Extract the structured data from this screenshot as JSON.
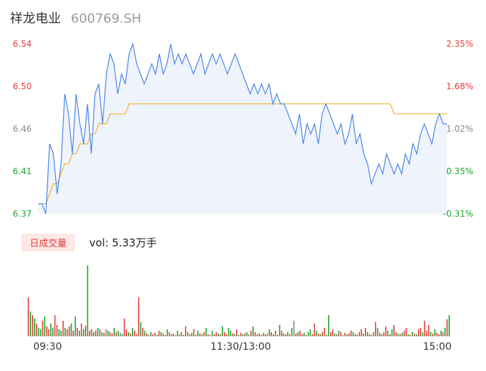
{
  "header": {
    "name": "祥龙电业",
    "code": "600769.SH"
  },
  "volume_panel": {
    "badge": "日成交量",
    "vol_label": "vol: 5.33万手"
  },
  "colors": {
    "up": "#e23b3b",
    "down": "#1aa62a",
    "neutral": "#888888",
    "price_line": "#4a86e8",
    "avg_line": "#f0b429",
    "area_fill": "#eef3fc"
  },
  "chart_data": [
    {
      "type": "line",
      "title": "",
      "ylim": [
        6.37,
        6.54
      ],
      "y_ticks": [
        "6.54",
        "6.50",
        "6.46",
        "6.41",
        "6.37"
      ],
      "y_right_ticks": [
        "2.35%",
        "1.68%",
        "1.02%",
        "0.35%",
        "-0.31%"
      ],
      "x_ticks": [
        "09:30",
        "11:30/13:00",
        "15:00"
      ],
      "series": [
        {
          "key": "price",
          "values": [
            6.38,
            6.38,
            6.37,
            6.44,
            6.43,
            6.39,
            6.42,
            6.49,
            6.47,
            6.43,
            6.49,
            6.46,
            6.44,
            6.48,
            6.43,
            6.49,
            6.5,
            6.46,
            6.51,
            6.53,
            6.52,
            6.49,
            6.51,
            6.5,
            6.53,
            6.54,
            6.52,
            6.51,
            6.5,
            6.51,
            6.52,
            6.51,
            6.53,
            6.51,
            6.52,
            6.54,
            6.52,
            6.53,
            6.52,
            6.53,
            6.52,
            6.51,
            6.52,
            6.53,
            6.51,
            6.52,
            6.53,
            6.52,
            6.53,
            6.52,
            6.51,
            6.52,
            6.53,
            6.52,
            6.51,
            6.5,
            6.49,
            6.5,
            6.49,
            6.5,
            6.49,
            6.5,
            6.48,
            6.49,
            6.48,
            6.48,
            6.47,
            6.46,
            6.45,
            6.47,
            6.44,
            6.46,
            6.45,
            6.46,
            6.44,
            6.47,
            6.48,
            6.47,
            6.46,
            6.45,
            6.46,
            6.44,
            6.45,
            6.47,
            6.44,
            6.45,
            6.43,
            6.42,
            6.4,
            6.41,
            6.42,
            6.41,
            6.43,
            6.42,
            6.41,
            6.42,
            6.41,
            6.43,
            6.42,
            6.44,
            6.43,
            6.45,
            6.46,
            6.45,
            6.44,
            6.46,
            6.47,
            6.46,
            6.46
          ]
        },
        {
          "key": "avg",
          "values": [
            6.38,
            6.38,
            6.38,
            6.39,
            6.4,
            6.4,
            6.41,
            6.42,
            6.42,
            6.43,
            6.43,
            6.44,
            6.44,
            6.44,
            6.45,
            6.45,
            6.46,
            6.46,
            6.46,
            6.47,
            6.47,
            6.47,
            6.47,
            6.47,
            6.48,
            6.48,
            6.48,
            6.48,
            6.48,
            6.48,
            6.48,
            6.48,
            6.48,
            6.48,
            6.48,
            6.48,
            6.48,
            6.48,
            6.48,
            6.48,
            6.48,
            6.48,
            6.48,
            6.48,
            6.48,
            6.48,
            6.48,
            6.48,
            6.48,
            6.48,
            6.48,
            6.48,
            6.48,
            6.48,
            6.48,
            6.48,
            6.48,
            6.48,
            6.48,
            6.48,
            6.48,
            6.48,
            6.48,
            6.48,
            6.48,
            6.48,
            6.48,
            6.48,
            6.48,
            6.48,
            6.48,
            6.48,
            6.48,
            6.48,
            6.48,
            6.48,
            6.48,
            6.48,
            6.48,
            6.48,
            6.48,
            6.48,
            6.48,
            6.48,
            6.48,
            6.48,
            6.48,
            6.48,
            6.48,
            6.48,
            6.48,
            6.48,
            6.48,
            6.48,
            6.47,
            6.47,
            6.47,
            6.47,
            6.47,
            6.47,
            6.47,
            6.47,
            6.47,
            6.47,
            6.47,
            6.47,
            6.47,
            6.47,
            6.47
          ]
        }
      ]
    },
    {
      "type": "bar",
      "title": "",
      "ylim": [
        0,
        100
      ],
      "values": [
        55,
        35,
        30,
        25,
        18,
        12,
        10,
        22,
        28,
        14,
        10,
        18,
        12,
        30,
        16,
        10,
        8,
        22,
        12,
        10,
        14,
        18,
        8,
        28,
        12,
        8,
        18,
        10,
        15,
        100,
        8,
        10,
        6,
        8,
        12,
        10,
        6,
        5,
        10,
        8,
        6,
        4,
        12,
        6,
        8,
        5,
        3,
        25,
        10,
        6,
        4,
        12,
        8,
        3,
        55,
        20,
        12,
        8,
        4,
        3,
        6,
        3,
        5,
        2,
        8,
        6,
        4,
        2,
        10,
        6,
        3,
        4,
        2,
        8,
        3,
        6,
        2,
        14,
        6,
        3,
        5,
        10,
        2,
        8,
        4,
        3,
        6,
        12,
        3,
        2,
        8,
        3,
        6,
        4,
        3,
        14,
        6,
        3,
        12,
        8,
        4,
        3,
        10,
        2,
        5,
        3,
        4,
        6,
        3,
        8,
        14,
        6,
        3,
        4,
        2,
        5,
        3,
        4,
        10,
        6,
        3,
        8,
        2,
        16,
        8,
        4,
        3,
        6,
        3,
        12,
        22,
        4,
        6,
        8,
        3,
        5,
        2,
        6,
        10,
        3,
        18,
        8,
        4,
        3,
        6,
        12,
        2,
        30,
        6,
        10,
        4,
        3,
        8,
        6,
        2,
        5,
        3,
        4,
        8,
        6,
        3,
        2,
        6,
        10,
        4,
        12,
        6,
        3,
        2,
        6,
        20,
        12,
        5,
        3,
        6,
        14,
        8,
        3,
        10,
        16,
        6,
        4,
        3,
        5,
        8,
        12,
        3,
        2,
        6,
        4,
        3,
        10,
        12,
        6,
        22,
        8,
        16,
        6,
        4,
        10,
        5,
        3,
        8,
        6,
        12,
        24,
        30
      ],
      "dirs": [
        "u",
        "d",
        "u",
        "d",
        "u",
        "d",
        "d",
        "u",
        "d",
        "u",
        "u",
        "d",
        "d",
        "u",
        "u",
        "d",
        "d",
        "u",
        "d",
        "u",
        "u",
        "d",
        "u",
        "d",
        "u",
        "d",
        "u",
        "d",
        "u",
        "d",
        "u",
        "u",
        "d",
        "u",
        "d",
        "u",
        "d",
        "u",
        "n",
        "d",
        "u",
        "u",
        "d",
        "u",
        "d",
        "n",
        "d",
        "u",
        "u",
        "d",
        "u",
        "d",
        "u",
        "u",
        "u",
        "d",
        "u",
        "d",
        "u",
        "n",
        "d",
        "u",
        "u",
        "d",
        "u",
        "d",
        "u",
        "u",
        "d",
        "u",
        "d",
        "u",
        "n",
        "d",
        "u",
        "u",
        "d",
        "u",
        "d",
        "u",
        "d",
        "u",
        "u",
        "d",
        "u",
        "d",
        "u",
        "d",
        "u",
        "n",
        "d",
        "u",
        "u",
        "d",
        "u",
        "d",
        "u",
        "u",
        "d",
        "d",
        "u",
        "d",
        "u",
        "d",
        "u",
        "d",
        "u",
        "d",
        "n",
        "u",
        "d",
        "u",
        "u",
        "d",
        "u",
        "d",
        "u",
        "n",
        "d",
        "u",
        "d",
        "u",
        "u",
        "d",
        "u",
        "d",
        "u",
        "d",
        "u",
        "d",
        "n",
        "u",
        "d",
        "u",
        "u",
        "d",
        "u",
        "d",
        "d",
        "u",
        "u",
        "d",
        "u",
        "d",
        "u",
        "u",
        "d",
        "d",
        "u",
        "u",
        "d",
        "u",
        "d",
        "u",
        "n",
        "u",
        "d",
        "u",
        "u",
        "d",
        "u",
        "d",
        "u",
        "u",
        "d",
        "u",
        "d",
        "u",
        "d",
        "u",
        "u",
        "d",
        "u",
        "d",
        "u",
        "u",
        "d",
        "u",
        "d",
        "u",
        "u",
        "d",
        "u",
        "d",
        "u",
        "u",
        "d",
        "u",
        "d",
        "u",
        "d",
        "u",
        "u",
        "d",
        "u",
        "u",
        "u",
        "d",
        "u",
        "d",
        "u",
        "u",
        "d",
        "u",
        "d",
        "u",
        "d"
      ]
    }
  ]
}
